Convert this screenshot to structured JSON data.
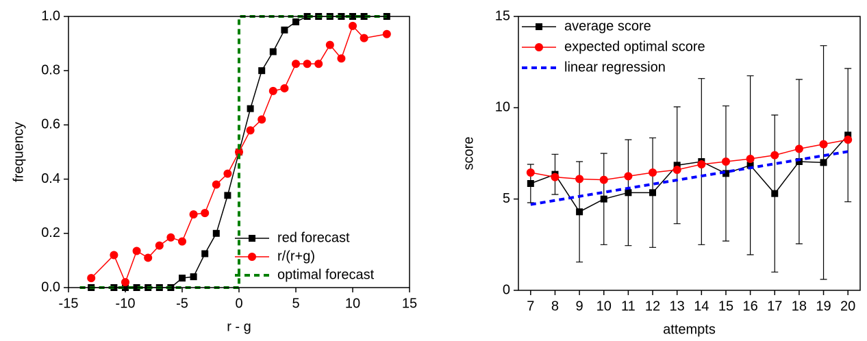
{
  "chart_data": [
    {
      "type": "line",
      "x_label": "r - g",
      "y_label": "frequency",
      "x": [
        -13,
        -11,
        -10,
        -9,
        -8,
        -7,
        -6,
        -5,
        -4,
        -3,
        -2,
        -1,
        0,
        1,
        2,
        3,
        4,
        5,
        6,
        7,
        8,
        9,
        10,
        11,
        13
      ],
      "xlim": [
        -15,
        15
      ],
      "xticks": [
        -15,
        -10,
        -5,
        0,
        5,
        10,
        15
      ],
      "ylim": [
        0,
        1
      ],
      "yticks": [
        {
          "value": 0,
          "label": "0.0"
        },
        0.2,
        0.4,
        0.6,
        0.8,
        {
          "value": 1,
          "label": "1.0"
        }
      ],
      "legend": "lower right",
      "series": [
        {
          "name": "red forecast",
          "color": "#000000",
          "marker": "square",
          "linestyle": "solid",
          "values": [
            0,
            0,
            0,
            0,
            0,
            0,
            0,
            0.035,
            0.04,
            0.125,
            0.2,
            0.34,
            0.5,
            0.66,
            0.8,
            0.87,
            0.95,
            0.98,
            1,
            1,
            1,
            1,
            1,
            1,
            1
          ]
        },
        {
          "name": "r/(r+g)",
          "color": "#ff0000",
          "marker": "circle",
          "linestyle": "solid",
          "values": [
            0.035,
            0.12,
            0.02,
            0.135,
            0.11,
            0.155,
            0.185,
            0.17,
            0.27,
            0.275,
            0.38,
            0.42,
            0.5,
            0.58,
            0.62,
            0.725,
            0.735,
            0.825,
            0.825,
            0.825,
            0.895,
            0.845,
            0.965,
            0.92,
            0.935
          ]
        },
        {
          "name": "optimal forecast",
          "color": "#008000",
          "marker": "none",
          "linestyle": "dashed",
          "x": [
            -14,
            0,
            0,
            13
          ],
          "values": [
            0,
            0,
            1,
            1
          ]
        }
      ]
    },
    {
      "type": "line",
      "x_label": "attempts",
      "y_label": "score",
      "x": [
        7,
        8,
        9,
        10,
        11,
        12,
        13,
        14,
        15,
        16,
        17,
        18,
        19,
        20
      ],
      "xlim": [
        6.5,
        20.5
      ],
      "xticks": [
        7,
        8,
        9,
        10,
        11,
        12,
        13,
        14,
        15,
        16,
        17,
        18,
        19,
        20
      ],
      "ylim": [
        0,
        15
      ],
      "yticks": [
        0,
        5,
        10,
        15
      ],
      "legend": "upper left",
      "series": [
        {
          "name": "average score",
          "color": "#000000",
          "marker": "square",
          "linestyle": "solid",
          "values": [
            5.85,
            6.35,
            4.3,
            5.0,
            5.35,
            5.35,
            6.85,
            7.05,
            6.4,
            6.85,
            5.3,
            7.05,
            7.0,
            8.5
          ],
          "errors": [
            1.05,
            1.1,
            2.75,
            2.5,
            2.9,
            3.0,
            3.2,
            4.55,
            3.7,
            4.9,
            4.3,
            4.5,
            6.4,
            3.65
          ]
        },
        {
          "name": "expected optimal score",
          "color": "#ff0000",
          "marker": "circle",
          "linestyle": "solid",
          "values": [
            6.45,
            6.2,
            6.1,
            6.05,
            6.25,
            6.45,
            6.6,
            6.9,
            7.05,
            7.2,
            7.4,
            7.75,
            8.0,
            8.25
          ]
        },
        {
          "name": "linear regression",
          "color": "#0000ff",
          "marker": "none",
          "linestyle": "dashed",
          "x": [
            7,
            20
          ],
          "values": [
            4.7,
            7.6
          ]
        }
      ]
    }
  ]
}
